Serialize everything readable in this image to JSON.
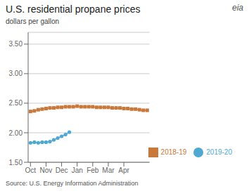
{
  "chart_data": {
    "type": "line",
    "title": "U.S. residential propane prices",
    "ylabel": "dollars per gallon",
    "source": "Source: U.S. Energy Information Administration",
    "annotations": [
      "eia"
    ],
    "xlim": [
      -0.3,
      15.3
    ],
    "xticks": [
      {
        "value": 0,
        "label": "Oct"
      },
      {
        "value": 2,
        "label": "Nov"
      },
      {
        "value": 4,
        "label": "Dec"
      },
      {
        "value": 6,
        "label": "Jan"
      },
      {
        "value": 8,
        "label": "Feb"
      },
      {
        "value": 10,
        "label": "Mar"
      },
      {
        "value": 12,
        "label": "Apr"
      }
    ],
    "ylim": [
      1.5,
      3.7
    ],
    "yticks": [
      {
        "value": 1.5,
        "label": "1.50"
      },
      {
        "value": 2.0,
        "label": "2.00"
      },
      {
        "value": 2.5,
        "label": "2.50"
      },
      {
        "value": 3.0,
        "label": "3.00"
      },
      {
        "value": 3.5,
        "label": "3.50"
      }
    ],
    "grid": true,
    "legend": "lower right",
    "series": [
      {
        "name": "2018-19",
        "color": "#c8783a",
        "marker": "square",
        "x": [
          0,
          0.5,
          1,
          1.5,
          2,
          2.5,
          3,
          3.5,
          4,
          4.5,
          5,
          5.5,
          6,
          6.5,
          7,
          7.5,
          8,
          8.5,
          9,
          9.5,
          10,
          10.5,
          11,
          11.5,
          12,
          12.5,
          13,
          13.5,
          14,
          14.5,
          15
        ],
        "values": [
          2.36,
          2.37,
          2.39,
          2.4,
          2.41,
          2.42,
          2.42,
          2.43,
          2.43,
          2.44,
          2.44,
          2.44,
          2.45,
          2.44,
          2.44,
          2.44,
          2.44,
          2.43,
          2.43,
          2.43,
          2.43,
          2.42,
          2.42,
          2.42,
          2.41,
          2.41,
          2.4,
          2.4,
          2.39,
          2.38,
          2.38
        ]
      },
      {
        "name": "2019-20",
        "color": "#4ea8d2",
        "marker": "circle",
        "x": [
          0,
          0.5,
          1,
          1.5,
          2,
          2.5,
          3,
          3.5,
          4,
          4.5,
          5
        ],
        "values": [
          1.83,
          1.84,
          1.83,
          1.84,
          1.84,
          1.85,
          1.88,
          1.91,
          1.94,
          1.97,
          2.01
        ]
      }
    ]
  }
}
